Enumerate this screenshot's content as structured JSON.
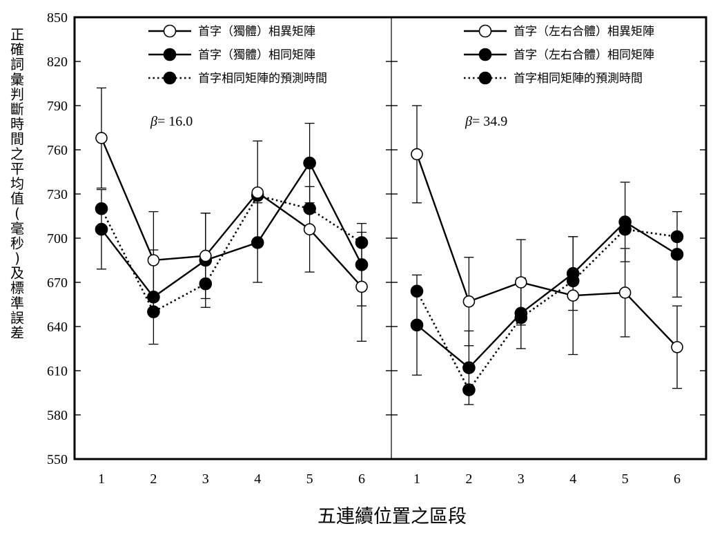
{
  "chart_data": {
    "type": "line",
    "ylabel": "正確詞彙判斷時間之平均值(毫秒)及標準誤差",
    "xlabel": "五連續位置之區段",
    "ylim": [
      550,
      850
    ],
    "yticks": [
      550,
      580,
      610,
      640,
      670,
      700,
      730,
      760,
      790,
      820,
      850
    ],
    "panels": [
      {
        "beta_symbol": "β",
        "beta_value": "= 16.0",
        "x": [
          "1",
          "2",
          "3",
          "4",
          "5",
          "6"
        ],
        "series": [
          {
            "name": "首字（獨體）相異矩陣",
            "marker": "open",
            "line": "solid",
            "values": [
              768,
              685,
              688,
              731,
              706,
              667
            ],
            "errors": [
              34,
              33,
              29,
              35,
              29,
              37
            ]
          },
          {
            "name": "首字（獨體）相同矩陣",
            "marker": "filled",
            "line": "solid",
            "values": [
              706,
              660,
              685,
              697,
              751,
              682
            ],
            "errors": [
              27,
              32,
              32,
              27,
              27,
              28
            ]
          },
          {
            "name": "首字相同矩陣的預測時間",
            "marker": "filled",
            "line": "dotted",
            "values": [
              720,
              650,
              669,
              729,
              720,
              697
            ],
            "errors": [
              null,
              null,
              null,
              null,
              null,
              null
            ]
          }
        ]
      },
      {
        "beta_symbol": "β",
        "beta_value": "= 34.9",
        "x": [
          "1",
          "2",
          "3",
          "4",
          "5",
          "6"
        ],
        "series": [
          {
            "name": "首字（左右合體）相異矩陣",
            "marker": "open",
            "line": "solid",
            "values": [
              757,
              657,
              670,
              661,
              663,
              626
            ],
            "errors": [
              33,
              30,
              29,
              40,
              30,
              28
            ]
          },
          {
            "name": "首字（左右合體）相同矩陣",
            "marker": "filled",
            "line": "solid",
            "values": [
              641,
              612,
              649,
              676,
              711,
              689
            ],
            "errors": [
              34,
              25,
              24,
              25,
              27,
              29
            ]
          },
          {
            "name": "首字相同矩陣的預測時間",
            "marker": "filled",
            "line": "dotted",
            "values": [
              664,
              597,
              646,
              671,
              706,
              701
            ],
            "errors": [
              null,
              null,
              null,
              null,
              null,
              null
            ]
          }
        ]
      }
    ]
  }
}
